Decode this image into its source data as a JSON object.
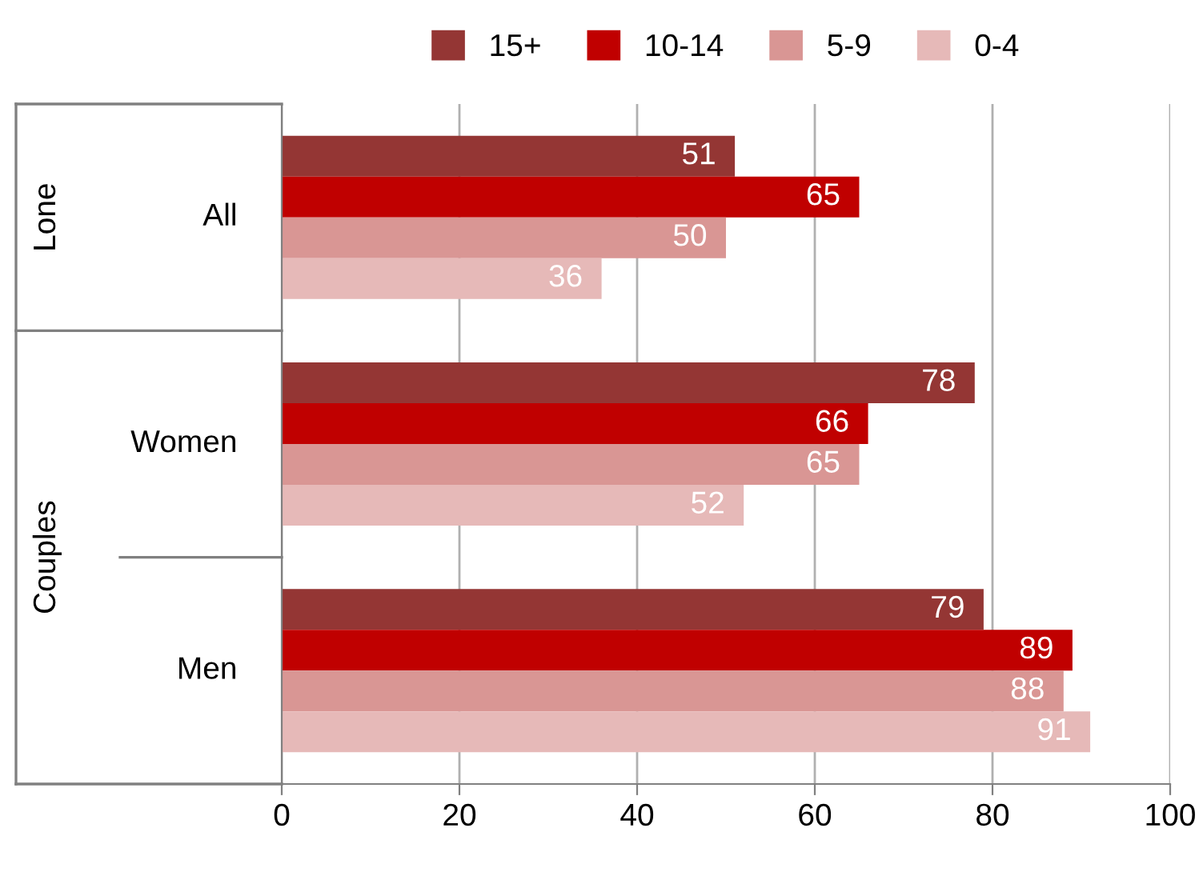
{
  "chart_data": {
    "type": "bar",
    "orientation": "horizontal",
    "categories": [
      "All",
      "Women",
      "Men"
    ],
    "series": [
      {
        "name": "15+",
        "color": "#943634",
        "values": [
          51,
          78,
          79
        ]
      },
      {
        "name": "10-14",
        "color": "#c00000",
        "values": [
          65,
          66,
          89
        ]
      },
      {
        "name": "5-9",
        "color": "#d99694",
        "values": [
          50,
          65,
          88
        ]
      },
      {
        "name": "0-4",
        "color": "#e6b9b8",
        "values": [
          36,
          52,
          91
        ]
      }
    ],
    "xlim": [
      0,
      100
    ],
    "xticks": [
      0,
      20,
      40,
      60,
      80,
      100
    ],
    "grid": "x",
    "legend": "top",
    "data_labels": true,
    "annotations": [
      "Lone",
      "Couples"
    ]
  }
}
